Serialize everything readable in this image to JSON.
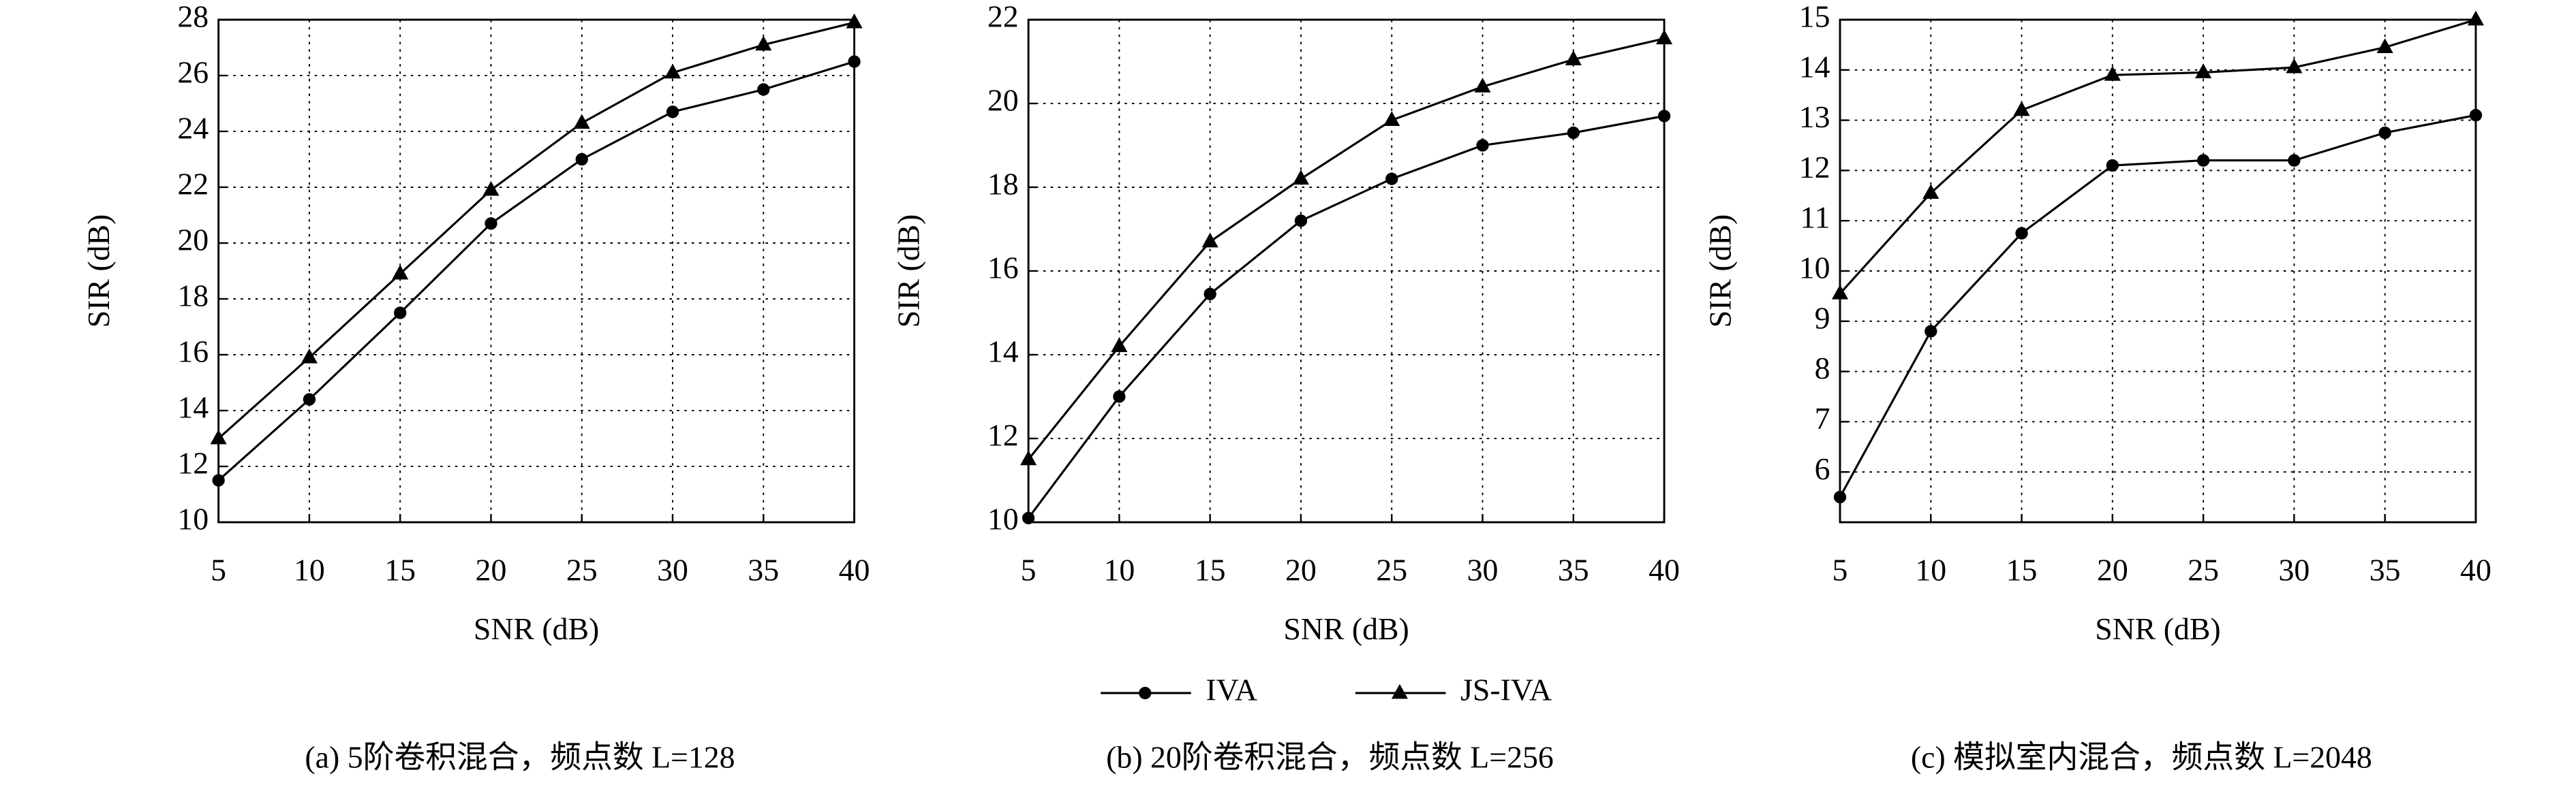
{
  "chart_data": [
    {
      "type": "line",
      "caption": "(a) 5阶卷积混合，频点数 L=128",
      "x_label": "SNR (dB)",
      "y_label": "SIR (dB)",
      "x": [
        5,
        10,
        15,
        20,
        25,
        30,
        35,
        40
      ],
      "xlim": [
        5,
        40
      ],
      "xticks": [
        5,
        10,
        15,
        20,
        25,
        30,
        35,
        40
      ],
      "ylim": [
        10,
        28
      ],
      "yticks": [
        10,
        12,
        14,
        16,
        18,
        20,
        22,
        24,
        26,
        28
      ],
      "grid": true,
      "series": [
        {
          "name": "IVA",
          "color": "#000000",
          "marker": "circle",
          "values": [
            11.5,
            14.4,
            17.5,
            20.7,
            23.0,
            24.7,
            25.5,
            26.5
          ]
        },
        {
          "name": "JS-IVA",
          "color": "#000000",
          "marker": "triangle",
          "values": [
            13.0,
            15.9,
            18.9,
            21.9,
            24.3,
            26.1,
            27.1,
            27.9
          ]
        }
      ]
    },
    {
      "type": "line",
      "caption": "(b) 20阶卷积混合，频点数 L=256",
      "x_label": "SNR (dB)",
      "y_label": "SIR (dB)",
      "x": [
        5,
        10,
        15,
        20,
        25,
        30,
        35,
        40
      ],
      "xlim": [
        5,
        40
      ],
      "xticks": [
        5,
        10,
        15,
        20,
        25,
        30,
        35,
        40
      ],
      "ylim": [
        10,
        22
      ],
      "yticks": [
        10,
        12,
        14,
        16,
        18,
        20,
        22
      ],
      "grid": true,
      "series": [
        {
          "color": "#000000",
          "marker": "circle",
          "values": [
            10.1,
            13.0,
            15.45,
            17.2,
            18.2,
            19.0,
            19.3,
            19.7
          ]
        },
        {
          "color": "#000000",
          "marker": "triangle",
          "values": [
            11.5,
            14.2,
            16.7,
            18.2,
            19.6,
            20.4,
            21.05,
            21.55
          ]
        }
      ]
    },
    {
      "type": "line",
      "caption": "(c) 模拟室内混合，频点数 L=2048",
      "x_label": "SNR (dB)",
      "y_label": "SIR (dB)",
      "x": [
        5,
        10,
        15,
        20,
        25,
        30,
        35,
        40
      ],
      "xlim": [
        5,
        40
      ],
      "xticks": [
        5,
        10,
        15,
        20,
        25,
        30,
        35,
        40
      ],
      "ylim": [
        5,
        15
      ],
      "yticks": [
        6,
        7,
        8,
        9,
        10,
        11,
        12,
        13,
        14,
        15
      ],
      "grid": true,
      "series": [
        {
          "color": "#000000",
          "marker": "circle",
          "values": [
            5.5,
            8.8,
            10.75,
            12.1,
            12.2,
            12.2,
            12.75,
            13.1
          ]
        },
        {
          "color": "#000000",
          "marker": "triangle",
          "values": [
            9.55,
            11.55,
            13.2,
            13.9,
            13.95,
            14.05,
            14.45,
            15.0
          ]
        }
      ]
    }
  ]
}
